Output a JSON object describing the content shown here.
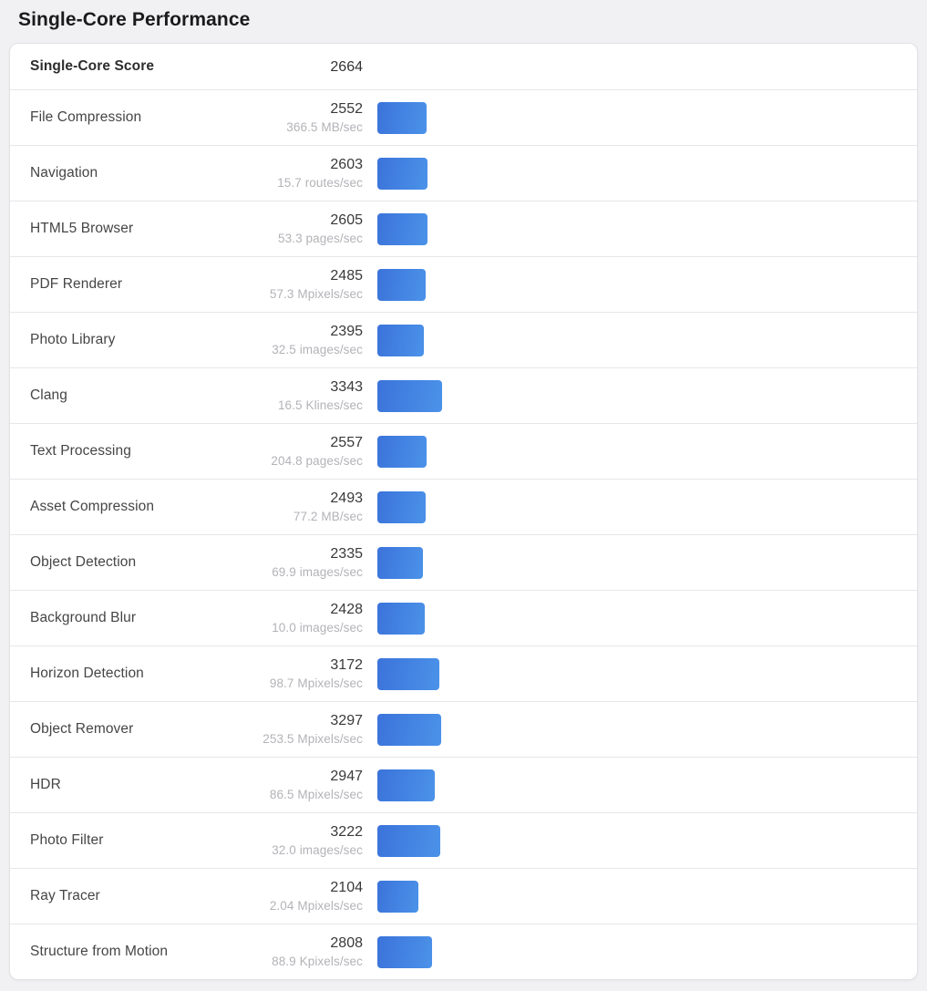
{
  "page": {
    "title": "Single-Core Performance"
  },
  "summary": {
    "label": "Single-Core Score",
    "score": "2664"
  },
  "colors": {
    "bar_gradient_start": "#3b73da",
    "bar_gradient_end": "#4b92e9",
    "page_background": "#f1f1f3",
    "card_background": "#ffffff",
    "divider": "#e7e7ea",
    "rate_text": "#b3b3b8"
  },
  "rows": [
    {
      "label": "File Compression",
      "score": "2552",
      "rate": "366.5 MB/sec"
    },
    {
      "label": "Navigation",
      "score": "2603",
      "rate": "15.7 routes/sec"
    },
    {
      "label": "HTML5 Browser",
      "score": "2605",
      "rate": "53.3 pages/sec"
    },
    {
      "label": "PDF Renderer",
      "score": "2485",
      "rate": "57.3 Mpixels/sec"
    },
    {
      "label": "Photo Library",
      "score": "2395",
      "rate": "32.5 images/sec"
    },
    {
      "label": "Clang",
      "score": "3343",
      "rate": "16.5 Klines/sec"
    },
    {
      "label": "Text Processing",
      "score": "2557",
      "rate": "204.8 pages/sec"
    },
    {
      "label": "Asset Compression",
      "score": "2493",
      "rate": "77.2 MB/sec"
    },
    {
      "label": "Object Detection",
      "score": "2335",
      "rate": "69.9 images/sec"
    },
    {
      "label": "Background Blur",
      "score": "2428",
      "rate": "10.0 images/sec"
    },
    {
      "label": "Horizon Detection",
      "score": "3172",
      "rate": "98.7 Mpixels/sec"
    },
    {
      "label": "Object Remover",
      "score": "3297",
      "rate": "253.5 Mpixels/sec"
    },
    {
      "label": "HDR",
      "score": "2947",
      "rate": "86.5 Mpixels/sec"
    },
    {
      "label": "Photo Filter",
      "score": "3222",
      "rate": "32.0 images/sec"
    },
    {
      "label": "Ray Tracer",
      "score": "2104",
      "rate": "2.04 Mpixels/sec"
    },
    {
      "label": "Structure from Motion",
      "score": "2808",
      "rate": "88.9 Kpixels/sec"
    }
  ],
  "chart_data": {
    "type": "bar",
    "orientation": "horizontal",
    "title": "Single-Core Performance",
    "summary_label": "Single-Core Score",
    "summary_score": 2664,
    "categories": [
      "File Compression",
      "Navigation",
      "HTML5 Browser",
      "PDF Renderer",
      "Photo Library",
      "Clang",
      "Text Processing",
      "Asset Compression",
      "Object Detection",
      "Background Blur",
      "Horizon Detection",
      "Object Remover",
      "HDR",
      "Photo Filter",
      "Ray Tracer",
      "Structure from Motion"
    ],
    "values": [
      2552,
      2603,
      2605,
      2485,
      2395,
      3343,
      2557,
      2493,
      2335,
      2428,
      3172,
      3297,
      2947,
      3222,
      2104,
      2808
    ],
    "rate_labels": [
      "366.5 MB/sec",
      "15.7 routes/sec",
      "53.3 pages/sec",
      "57.3 Mpixels/sec",
      "32.5 images/sec",
      "16.5 Klines/sec",
      "204.8 pages/sec",
      "77.2 MB/sec",
      "69.9 images/sec",
      "10.0 images/sec",
      "98.7 Mpixels/sec",
      "253.5 Mpixels/sec",
      "86.5 Mpixels/sec",
      "32.0 images/sec",
      "2.04 Mpixels/sec",
      "88.9 Kpixels/sec"
    ],
    "bar_color_gradient": [
      "#3b73da",
      "#4b92e9"
    ],
    "grid": false,
    "legend": false
  }
}
